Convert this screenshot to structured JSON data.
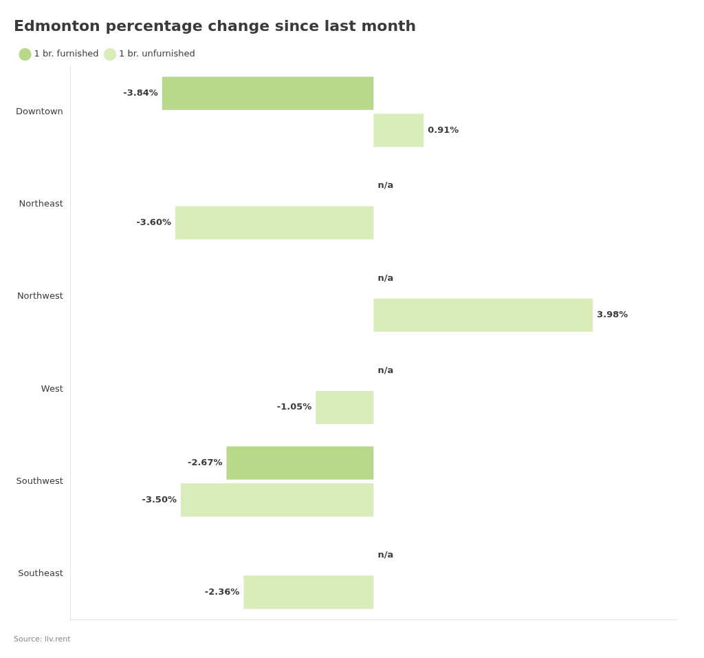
{
  "chart_data": {
    "type": "bar",
    "orientation": "horizontal",
    "title": "Edmonton percentage change since last month",
    "annotation": "Source: liv.rent",
    "categories": [
      "Downtown",
      "Northeast",
      "Northwest",
      "West",
      "Southwest",
      "Southeast"
    ],
    "series": [
      {
        "name": "1 br. furnished",
        "color": "#b8d98a",
        "values": [
          -3.84,
          null,
          null,
          null,
          -2.67,
          null
        ],
        "value_labels": [
          "-3.84%",
          "n/a",
          "n/a",
          "n/a",
          "-2.67%",
          "n/a"
        ]
      },
      {
        "name": "1 br. unfurnished",
        "color": "#d8edba",
        "values": [
          0.91,
          -3.6,
          3.98,
          -1.05,
          -3.5,
          -2.36
        ],
        "value_labels": [
          "0.91%",
          "-3.60%",
          "3.98%",
          "-1.05%",
          "-3.50%",
          "-2.36%"
        ]
      }
    ],
    "xlim": [
      -5.5,
      5.5
    ],
    "tick_labels": "y",
    "grid": false,
    "legend": "top",
    "data_labels": true
  }
}
